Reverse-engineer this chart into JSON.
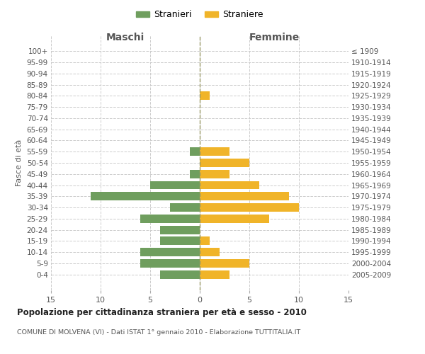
{
  "age_groups": [
    "100+",
    "95-99",
    "90-94",
    "85-89",
    "80-84",
    "75-79",
    "70-74",
    "65-69",
    "60-64",
    "55-59",
    "50-54",
    "45-49",
    "40-44",
    "35-39",
    "30-34",
    "25-29",
    "20-24",
    "15-19",
    "10-14",
    "5-9",
    "0-4"
  ],
  "birth_years": [
    "≤ 1909",
    "1910-1914",
    "1915-1919",
    "1920-1924",
    "1925-1929",
    "1930-1934",
    "1935-1939",
    "1940-1944",
    "1945-1949",
    "1950-1954",
    "1955-1959",
    "1960-1964",
    "1965-1969",
    "1970-1974",
    "1975-1979",
    "1980-1984",
    "1985-1989",
    "1990-1994",
    "1995-1999",
    "2000-2004",
    "2005-2009"
  ],
  "males": [
    0,
    0,
    0,
    0,
    0,
    0,
    0,
    0,
    0,
    1,
    0,
    1,
    5,
    11,
    3,
    6,
    4,
    4,
    6,
    6,
    4
  ],
  "females": [
    0,
    0,
    0,
    0,
    1,
    0,
    0,
    0,
    0,
    3,
    5,
    3,
    6,
    9,
    10,
    7,
    0,
    1,
    2,
    5,
    3
  ],
  "male_color": "#6f9e5e",
  "female_color": "#f0b429",
  "title": "Popolazione per cittadinanza straniera per età e sesso - 2010",
  "subtitle": "COMUNE DI MOLVENA (VI) - Dati ISTAT 1° gennaio 2010 - Elaborazione TUTTITALIA.IT",
  "ylabel_left": "Fasce di età",
  "xlabel_left": "Maschi",
  "xlabel_right": "Femmine",
  "legend_male": "Stranieri",
  "legend_female": "Straniere",
  "xlim": 15,
  "bg_color": "#ffffff",
  "grid_color": "#cccccc",
  "text_color": "#555555"
}
